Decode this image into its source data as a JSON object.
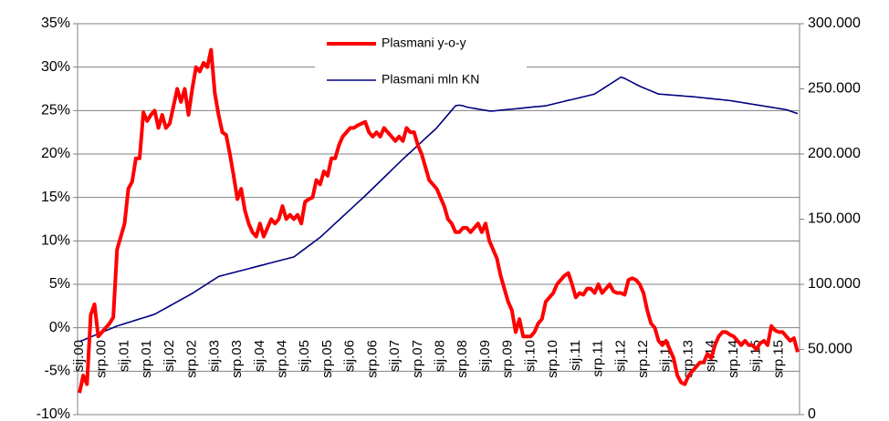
{
  "chart_data": {
    "type": "line",
    "categories": [
      "sij.00",
      null,
      null,
      null,
      null,
      null,
      "srp.00",
      null,
      null,
      null,
      null,
      null,
      "sij.01",
      null,
      null,
      null,
      null,
      null,
      "srp.01",
      null,
      null,
      null,
      null,
      null,
      "sij.02",
      null,
      null,
      null,
      null,
      null,
      "srp.02",
      null,
      null,
      null,
      null,
      null,
      "sij.03",
      null,
      null,
      null,
      null,
      null,
      "srp.03",
      null,
      null,
      null,
      null,
      null,
      "sij.04",
      null,
      null,
      null,
      null,
      null,
      "srp.04",
      null,
      null,
      null,
      null,
      null,
      "sij.05",
      null,
      null,
      null,
      null,
      null,
      "srp.05",
      null,
      null,
      null,
      null,
      null,
      "sij.06",
      null,
      null,
      null,
      null,
      null,
      "srp.06",
      null,
      null,
      null,
      null,
      null,
      "sij.07",
      null,
      null,
      null,
      null,
      null,
      "srp.07",
      null,
      null,
      null,
      null,
      null,
      "sij.08",
      null,
      null,
      null,
      null,
      null,
      "srp.08",
      null,
      null,
      null,
      null,
      null,
      "sij.09",
      null,
      null,
      null,
      null,
      null,
      "srp.09",
      null,
      null,
      null,
      null,
      null,
      "sij.10",
      null,
      null,
      null,
      null,
      null,
      "srp.10",
      null,
      null,
      null,
      null,
      null,
      "sij.11",
      null,
      null,
      null,
      null,
      null,
      "srp.11",
      null,
      null,
      null,
      null,
      null,
      "sij.12",
      null,
      null,
      null,
      null,
      null,
      "srp.12",
      null,
      null,
      null,
      null,
      null,
      "sij.13",
      null,
      null,
      null,
      null,
      null,
      "srp.13",
      null,
      null,
      null,
      null,
      null,
      "sij.14",
      null,
      null,
      null,
      null,
      null,
      "srp.14",
      null,
      null,
      null,
      null,
      null,
      "sij.15",
      null,
      null,
      null,
      null,
      null,
      "srp.15",
      null,
      null,
      null,
      null,
      null
    ],
    "series": [
      {
        "name": "Plasmani y-o-y",
        "color": "#ff0000",
        "axis": "y",
        "values": [
          -7.5,
          -5.5,
          -6.5,
          1.5,
          2.7,
          -1,
          -0.5,
          0,
          0.5,
          1.2,
          9,
          10.5,
          12,
          16,
          16.8,
          19.5,
          19.5,
          24.8,
          23.8,
          24.5,
          25,
          23,
          24.5,
          23,
          23.5,
          25.5,
          27.5,
          26,
          27.5,
          24.5,
          27.5,
          30,
          29.5,
          30.5,
          30,
          32,
          27,
          24.5,
          22.5,
          22.2,
          20,
          17.5,
          14.8,
          16,
          13.5,
          12,
          11,
          10.5,
          12,
          10.5,
          11.5,
          12.5,
          12,
          12.5,
          14,
          12.5,
          13,
          12.5,
          13,
          12,
          14.5,
          14.8,
          15,
          17,
          16.5,
          18,
          17.5,
          19.5,
          19.5,
          21,
          22,
          22.5,
          23,
          23,
          23.3,
          23.5,
          23.7,
          22.5,
          22,
          22.5,
          22,
          23,
          22.5,
          22,
          21.5,
          22,
          21.5,
          23,
          22.5,
          22.5,
          21,
          20,
          18.5,
          17,
          16.5,
          16,
          15,
          14,
          12.5,
          12,
          11,
          11,
          11.5,
          11.5,
          11,
          11.5,
          12,
          11,
          12,
          10,
          9,
          8,
          6,
          4.5,
          3,
          2,
          -0.5,
          1,
          -1,
          -1,
          -1,
          -0.5,
          0.5,
          1,
          3,
          3.5,
          4,
          5,
          5.5,
          6,
          6.3,
          5,
          3.5,
          4,
          3.8,
          4.5,
          4.5,
          4,
          5,
          4,
          4.5,
          5,
          4.2,
          4,
          4,
          3.8,
          5.5,
          5.7,
          5.5,
          5,
          4,
          2,
          0.5,
          0,
          -1.5,
          -2,
          -1.5,
          -2.5,
          -3.5,
          -5.5,
          -6.3,
          -6.5,
          -5.5,
          -5,
          -4.5,
          -4,
          -4,
          -3,
          -3.5,
          -2,
          -1,
          -0.5,
          -0.5,
          -0.8,
          -1,
          -1.5,
          -2,
          -1.5,
          -2,
          -2,
          -2.5,
          -1.8,
          -1.5,
          -2,
          0.2,
          -0.3,
          -0.5,
          -0.5,
          -1,
          -1.5,
          -1.2,
          -2.8
        ]
      },
      {
        "name": "Plasmani mln KN",
        "color": "#000080",
        "axis": "y2",
        "values": [
          56000,
          57200,
          58400,
          59600,
          60800,
          62000,
          63200,
          64400,
          65600,
          66800,
          68000,
          68900,
          69800,
          70700,
          71600,
          72500,
          73400,
          74300,
          75200,
          76100,
          77000,
          78600,
          80200,
          81800,
          83400,
          85000,
          86600,
          88200,
          89800,
          91400,
          93000,
          94900,
          96700,
          98600,
          100400,
          102300,
          104100,
          106000,
          106800,
          107500,
          108300,
          109000,
          109800,
          110500,
          111300,
          112000,
          112800,
          113500,
          114300,
          115000,
          115800,
          116500,
          117300,
          118000,
          118800,
          119500,
          120300,
          121000,
          123100,
          125300,
          127400,
          129600,
          131700,
          133900,
          136000,
          138700,
          141300,
          144000,
          146700,
          149300,
          152000,
          154700,
          157300,
          160000,
          162700,
          165300,
          168000,
          170800,
          173600,
          176400,
          179200,
          182000,
          184800,
          187600,
          190400,
          193200,
          196000,
          198700,
          201300,
          204000,
          206700,
          209300,
          212000,
          214700,
          217300,
          220000,
          223400,
          226800,
          230200,
          233600,
          237000,
          237500,
          237000,
          236000,
          235500,
          235000,
          234500,
          234000,
          233500,
          233000,
          233000,
          233300,
          233600,
          233900,
          234200,
          234400,
          234700,
          235000,
          235300,
          235600,
          235900,
          236200,
          236400,
          236700,
          237000,
          237700,
          238400,
          239100,
          239800,
          240500,
          241200,
          241800,
          242500,
          243200,
          243900,
          244600,
          245300,
          246000,
          247900,
          249700,
          251600,
          253400,
          255300,
          257100,
          259000,
          258000,
          256500,
          255000,
          253500,
          252000,
          250800,
          249600,
          248400,
          247200,
          246000,
          245800,
          245600,
          245300,
          245100,
          244900,
          244700,
          244400,
          244200,
          244000,
          243700,
          243400,
          243100,
          242800,
          242500,
          242200,
          241900,
          241600,
          241300,
          241000,
          240500,
          240100,
          239600,
          239100,
          238700,
          238200,
          237700,
          237300,
          236800,
          236300,
          235900,
          235400,
          234900,
          234500,
          234000,
          233000,
          232000,
          231000
        ]
      }
    ],
    "ylim": [
      -10,
      35
    ],
    "yticks": [
      {
        "value": -10,
        "label": "-10%"
      },
      {
        "value": -5,
        "label": "-5%"
      },
      {
        "value": 0,
        "label": "0%"
      },
      {
        "value": 5,
        "label": "5%"
      },
      {
        "value": 10,
        "label": "10%"
      },
      {
        "value": 15,
        "label": "15%"
      },
      {
        "value": 20,
        "label": "20%"
      },
      {
        "value": 25,
        "label": "25%"
      },
      {
        "value": 30,
        "label": "30%"
      },
      {
        "value": 35,
        "label": "35%"
      }
    ],
    "y2lim": [
      0,
      300000
    ],
    "y2ticks": [
      0,
      {
        "value": 50000,
        "label": "50.000"
      },
      {
        "value": 100000,
        "label": "100.000"
      },
      {
        "value": 150000,
        "label": "150.000"
      },
      {
        "value": 200000,
        "label": "200.000"
      },
      {
        "value": 250000,
        "label": "250.000"
      },
      {
        "value": 300000,
        "label": "300.000"
      }
    ],
    "grid": true,
    "legend": "top"
  }
}
